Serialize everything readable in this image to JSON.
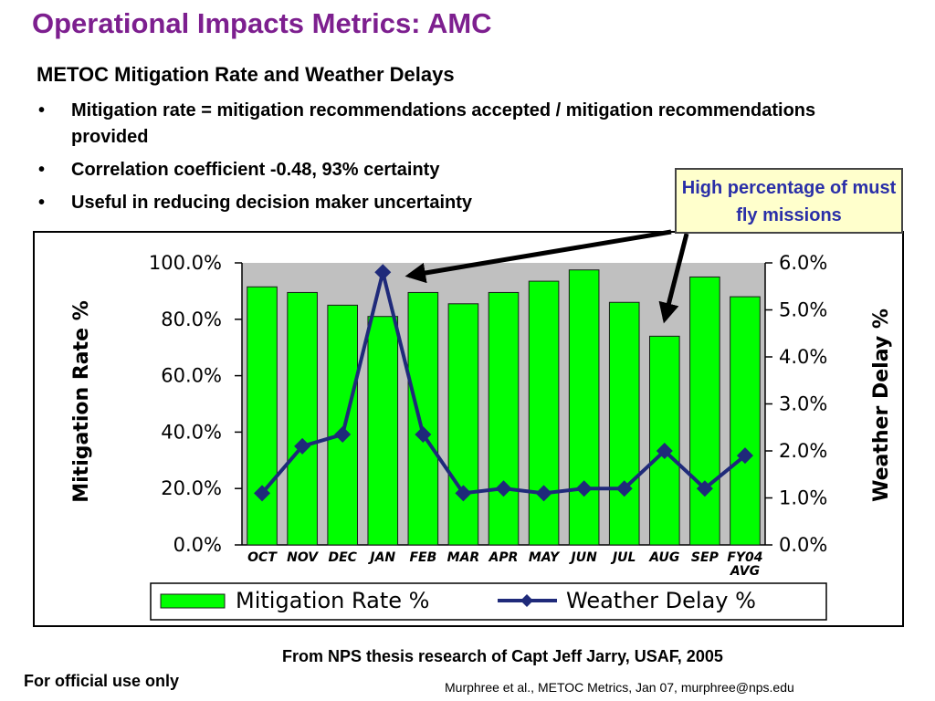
{
  "slide": {
    "title": "Operational Impacts Metrics: AMC",
    "subtitle": "METOC Mitigation Rate and Weather Delays",
    "bullets": [
      "Mitigation rate = mitigation recommendations accepted / mitigation recommendations provided",
      "Correlation coefficient -0.48, 93% certainty",
      "Useful in reducing decision maker uncertainty"
    ],
    "callout": "High percentage of must fly missions",
    "source": "From NPS thesis research of Capt Jeff Jarry, USAF, 2005",
    "official": "For official use only",
    "footer": "Murphree et al., METOC Metrics, Jan 07, murphree@nps.edu"
  },
  "chart_data": {
    "type": "bar",
    "categories": [
      "OCT",
      "NOV",
      "DEC",
      "JAN",
      "FEB",
      "MAR",
      "APR",
      "MAY",
      "JUN",
      "JUL",
      "AUG",
      "SEP",
      "FY04 AVG"
    ],
    "series": [
      {
        "name": "Mitigation Rate %",
        "type": "bar",
        "axis": "left",
        "values": [
          91.5,
          89.5,
          85.0,
          81.0,
          89.5,
          85.5,
          89.5,
          93.5,
          97.5,
          86.0,
          74.0,
          95.0,
          88.0
        ]
      },
      {
        "name": "Weather Delay %",
        "type": "line",
        "axis": "right",
        "values": [
          1.1,
          2.1,
          2.35,
          5.8,
          2.35,
          1.1,
          1.2,
          1.1,
          1.2,
          1.2,
          2.0,
          1.2,
          1.9
        ]
      }
    ],
    "ylabel": "Mitigation Rate %",
    "y2label": "Weather Delay %",
    "ylim": [
      0,
      100
    ],
    "y2lim": [
      0,
      6
    ],
    "yticks": [
      "0.0%",
      "20.0%",
      "40.0%",
      "60.0%",
      "80.0%",
      "100.0%"
    ],
    "y2ticks": [
      "0.0%",
      "1.0%",
      "2.0%",
      "3.0%",
      "4.0%",
      "5.0%",
      "6.0%"
    ],
    "legend_position": "bottom",
    "colors": {
      "bar": "#00ff00",
      "bar_edge": "#1a1a1a",
      "line": "#1f2a7a",
      "plot_bg": "#c0c0c0"
    }
  }
}
